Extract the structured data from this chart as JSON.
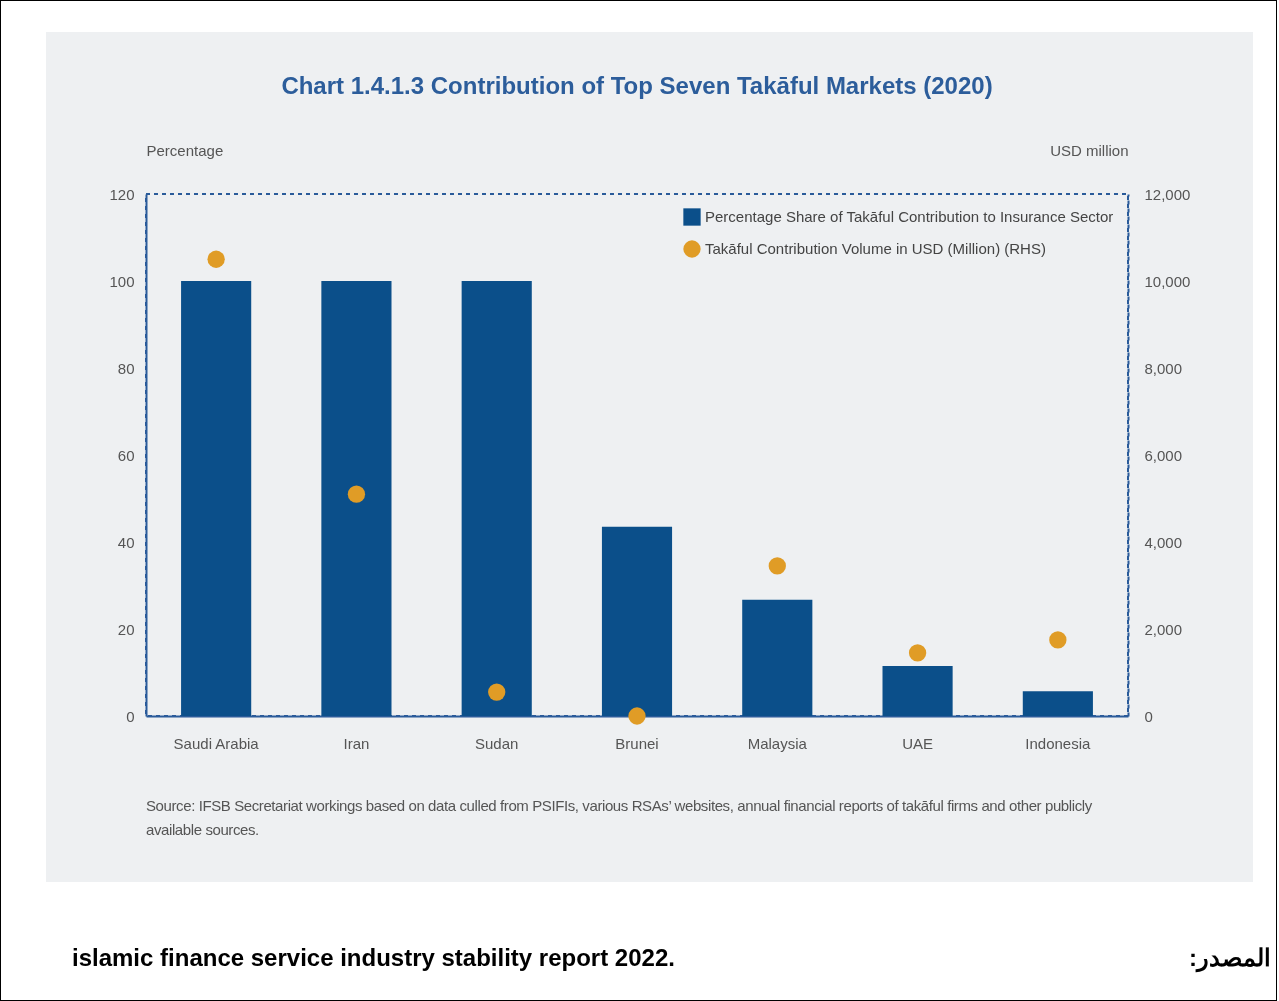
{
  "chart_data": {
    "type": "bar",
    "title": "Chart 1.4.1.3 Contribution of Top Seven Takāful Markets (2020)",
    "ylabel": "Percentage",
    "y2label": "USD million",
    "categories": [
      "Saudi Arabia",
      "Iran",
      "Sudan",
      "Brunei",
      "Malaysia",
      "UAE",
      "Indonesia"
    ],
    "series": [
      {
        "name": "Percentage Share of Takāful Contribution to Insurance Sector",
        "color": "#0b4f8a",
        "values": [
          100,
          100,
          100,
          43.5,
          26.7,
          11.5,
          5.7
        ]
      },
      {
        "name": "Takāful Contribution Volume in USD (Million) (RHS)",
        "type": "scatter",
        "axis": "y2",
        "marker": "circle",
        "color": "#e09c26",
        "values": [
          10500,
          5100,
          550,
          0,
          3450,
          1450,
          1750
        ]
      }
    ],
    "ylim": [
      0,
      120
    ],
    "yticks": [
      0,
      20,
      40,
      60,
      80,
      100,
      120
    ],
    "y2lim": [
      0,
      12000
    ],
    "y2ticks": [
      0,
      {
        "value": 2000,
        "label": "2,000"
      },
      {
        "value": 4000,
        "label": "4,000"
      },
      {
        "value": 6000,
        "label": "6,000"
      },
      {
        "value": 8000,
        "label": "8,000"
      },
      {
        "value": 10000,
        "label": "10,000"
      },
      {
        "value": 12000,
        "label": "12,000"
      }
    ],
    "legend": "top right",
    "annotations": [
      "Source: IFSB Secretariat workings based on data culled from PSIFIs, various RSAs’ websites, annual financial reports of takāful firms and other publicly available sources.",
      "islamic finance service industry stability report 2022.",
      "المصدر:"
    ]
  }
}
